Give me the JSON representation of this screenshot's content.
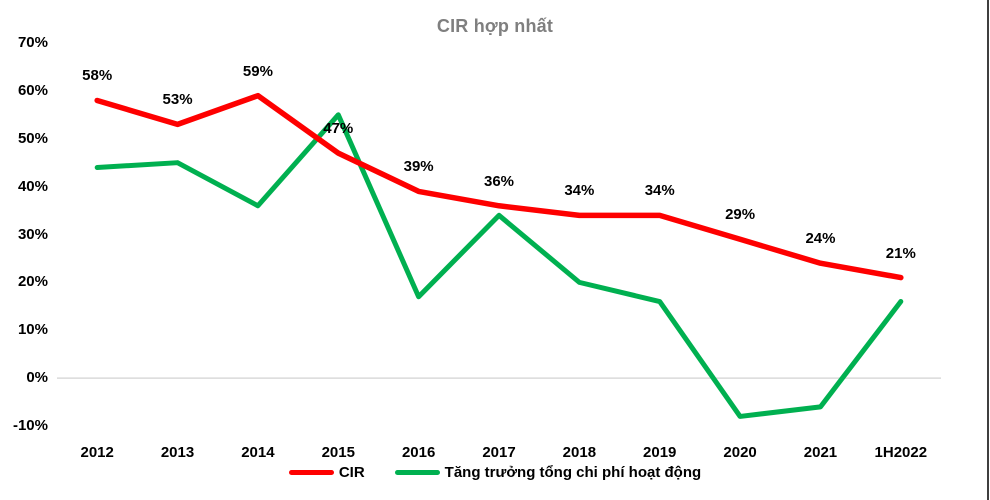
{
  "chart_data": {
    "type": "line",
    "title": "CIR hợp nhất",
    "title_color": "#7F7F7F",
    "label_color": "#000000",
    "background": "#FFFFFF",
    "grid": "zero-line-only",
    "gridline_color": "#D9D9D9",
    "legend_position": "bottom",
    "categories": [
      "2012",
      "2013",
      "2014",
      "2015",
      "2016",
      "2017",
      "2018",
      "2019",
      "2020",
      "2021",
      "1H2022"
    ],
    "y_axis": {
      "range": [
        -10,
        70
      ],
      "ticks": [
        {
          "value": 70,
          "label": "70%"
        },
        {
          "value": 60,
          "label": "60%"
        },
        {
          "value": 50,
          "label": "50%"
        },
        {
          "value": 40,
          "label": "40%"
        },
        {
          "value": 30,
          "label": "30%"
        },
        {
          "value": 20,
          "label": "20%"
        },
        {
          "value": 10,
          "label": "10%"
        },
        {
          "value": 0,
          "label": "0%"
        },
        {
          "value": -10,
          "label": "-10%"
        }
      ]
    },
    "series": [
      {
        "name": "Tăng trưởng tổng chi phí hoạt động",
        "color": "#00B050",
        "stroke_width": 5,
        "values": [
          44,
          45,
          36,
          55,
          17,
          34,
          20,
          16,
          -8,
          -6,
          16
        ],
        "data_labels": []
      },
      {
        "name": "CIR",
        "color": "#FE0000",
        "stroke_width": 5.5,
        "values": [
          58,
          53,
          59,
          47,
          39,
          36,
          34,
          34,
          29,
          24,
          21
        ],
        "data_labels": [
          "58%",
          "53%",
          "59%",
          "47%",
          "39%",
          "36%",
          "34%",
          "34%",
          "29%",
          "24%",
          "21%"
        ]
      }
    ],
    "legend_order": [
      "CIR",
      "Tăng trưởng tổng chi phí hoạt động"
    ]
  }
}
